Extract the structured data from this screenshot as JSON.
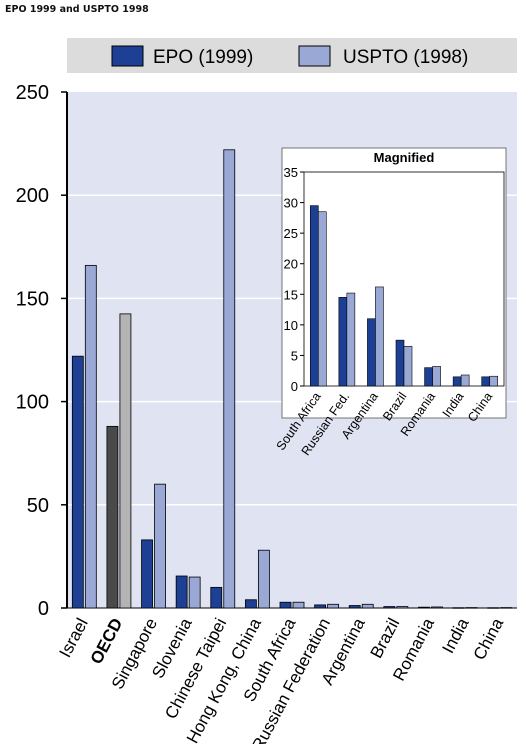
{
  "header": {
    "title": "EPO 1999 and USPTO 1998"
  },
  "chart_data": {
    "main": {
      "type": "bar",
      "title": "",
      "xlabel": "",
      "ylabel": "",
      "ylim": [
        0,
        250
      ],
      "yticks": [
        0,
        50,
        100,
        150,
        200,
        250
      ],
      "categories": [
        "Israel",
        "OECD",
        "Singapore",
        "Slovenia",
        "Chinese Taipei",
        "Hong Kong, China",
        "South Africa",
        "Russian Federation",
        "Argentina",
        "Brazil",
        "Romania",
        "India",
        "China"
      ],
      "highlight_category": "OECD",
      "series": [
        {
          "name": "EPO (1999)",
          "color": "#1d3f94",
          "highlight_color": "#4a4a4a",
          "values": [
            122,
            88,
            33,
            15.5,
            10,
            4,
            2.8,
            1.5,
            1.2,
            0.7,
            0.4,
            0.15,
            0.15
          ]
        },
        {
          "name": "USPTO (1998)",
          "color": "#9aa8d6",
          "highlight_color": "#b4b4b4",
          "values": [
            166,
            142.5,
            60,
            15,
            222,
            28,
            2.8,
            1.8,
            1.8,
            0.7,
            0.5,
            0.2,
            0.2
          ]
        }
      ],
      "legend": "top"
    },
    "inset": {
      "type": "bar",
      "title": "Magnified",
      "ylim": [
        0,
        35
      ],
      "yticks": [
        0,
        5,
        10,
        15,
        20,
        25,
        30,
        35
      ],
      "categories": [
        "South Africa",
        "Russian Fed.",
        "Argentina",
        "Brazil",
        "Romania",
        "India",
        "China"
      ],
      "series": [
        {
          "name": "EPO (1999)",
          "values": [
            29.5,
            14.5,
            11,
            7.5,
            3,
            1.5,
            1.5
          ]
        },
        {
          "name": "USPTO (1998)",
          "values": [
            28.5,
            15.2,
            16.2,
            6.5,
            3.2,
            1.8,
            1.6
          ]
        }
      ]
    }
  }
}
